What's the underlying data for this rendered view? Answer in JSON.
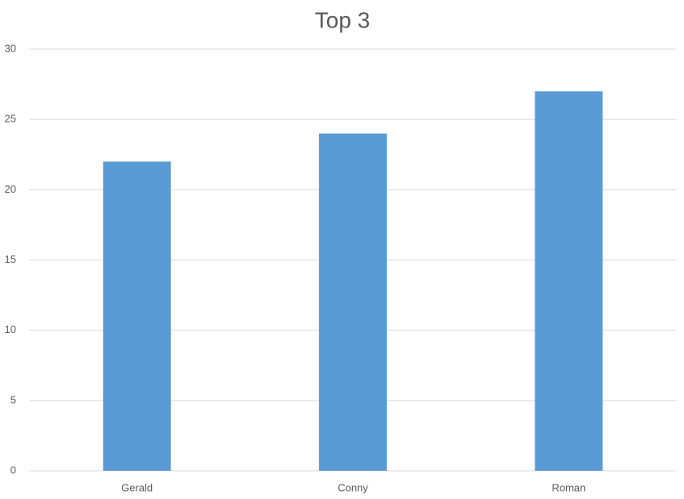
{
  "chart_data": {
    "type": "bar",
    "title": "Top 3",
    "categories": [
      "Gerald",
      "Conny",
      "Roman"
    ],
    "values": [
      22,
      24,
      27
    ],
    "color": "#5b9bd5",
    "ylim": [
      0,
      30
    ],
    "yticks": [
      0,
      5,
      10,
      15,
      20,
      25,
      30
    ],
    "grid": true
  }
}
